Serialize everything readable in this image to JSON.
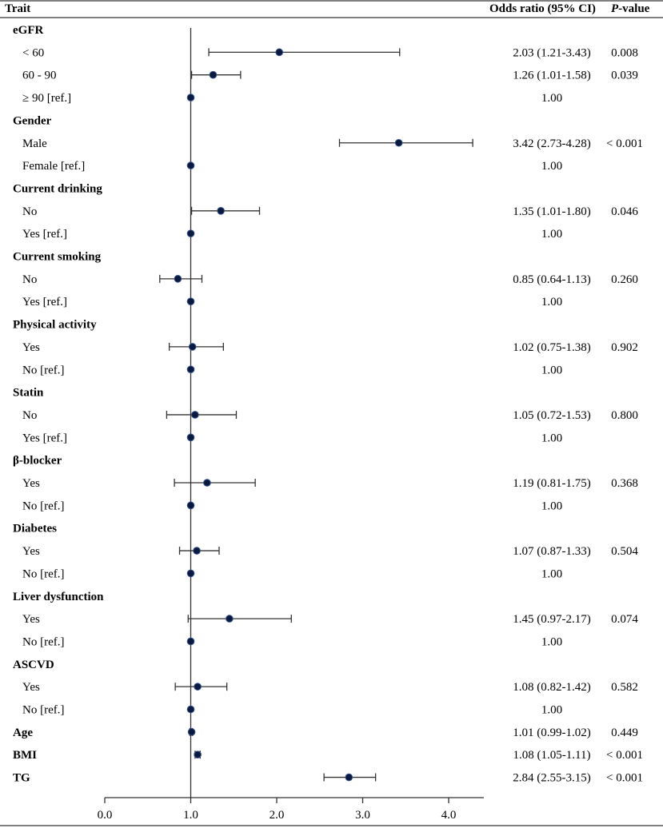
{
  "chart_data": {
    "type": "forest",
    "title": "",
    "xlabel": "",
    "xlim": [
      0,
      4.5
    ],
    "xticks": [
      0.0,
      1.0,
      2.0,
      3.0,
      4.0
    ],
    "xtick_labels": [
      "0.0",
      "1.0",
      "2.0",
      "3.0",
      "4.0"
    ],
    "reference_line": 1.0,
    "headers": {
      "trait": "Trait",
      "or": "Odds ratio (95% CI)",
      "p_italic": "P",
      "p_rest": "-value"
    },
    "rows": [
      {
        "kind": "group",
        "label": "eGFR"
      },
      {
        "kind": "item",
        "label": "< 60",
        "or": 2.03,
        "lo": 1.21,
        "hi": 3.43,
        "or_text": "2.03 (1.21-3.43)",
        "p": "0.008"
      },
      {
        "kind": "item",
        "label": "60 - 90",
        "or": 1.26,
        "lo": 1.01,
        "hi": 1.58,
        "or_text": "1.26 (1.01-1.58)",
        "p": "0.039"
      },
      {
        "kind": "item",
        "label": "≥ 90 [ref.]",
        "or": 1.0,
        "lo": null,
        "hi": null,
        "or_text": "1.00",
        "p": ""
      },
      {
        "kind": "group",
        "label": "Gender"
      },
      {
        "kind": "item",
        "label": "Male",
        "or": 3.42,
        "lo": 2.73,
        "hi": 4.28,
        "or_text": "3.42 (2.73-4.28)",
        "p": "< 0.001"
      },
      {
        "kind": "item",
        "label": "Female [ref.]",
        "or": 1.0,
        "lo": null,
        "hi": null,
        "or_text": "1.00",
        "p": ""
      },
      {
        "kind": "group",
        "label": "Current drinking"
      },
      {
        "kind": "item",
        "label": "No",
        "or": 1.35,
        "lo": 1.01,
        "hi": 1.8,
        "or_text": "1.35 (1.01-1.80)",
        "p": "0.046"
      },
      {
        "kind": "item",
        "label": "Yes [ref.]",
        "or": 1.0,
        "lo": null,
        "hi": null,
        "or_text": "1.00",
        "p": ""
      },
      {
        "kind": "group",
        "label": "Current smoking"
      },
      {
        "kind": "item",
        "label": "No",
        "or": 0.85,
        "lo": 0.64,
        "hi": 1.13,
        "or_text": "0.85 (0.64-1.13)",
        "p": "0.260"
      },
      {
        "kind": "item",
        "label": "Yes [ref.]",
        "or": 1.0,
        "lo": null,
        "hi": null,
        "or_text": "1.00",
        "p": ""
      },
      {
        "kind": "group",
        "label": "Physical activity"
      },
      {
        "kind": "item",
        "label": "Yes",
        "or": 1.02,
        "lo": 0.75,
        "hi": 1.38,
        "or_text": "1.02 (0.75-1.38)",
        "p": "0.902"
      },
      {
        "kind": "item",
        "label": "No [ref.]",
        "or": 1.0,
        "lo": null,
        "hi": null,
        "or_text": "1.00",
        "p": ""
      },
      {
        "kind": "group",
        "label": "Statin"
      },
      {
        "kind": "item",
        "label": "No",
        "or": 1.05,
        "lo": 0.72,
        "hi": 1.53,
        "or_text": "1.05 (0.72-1.53)",
        "p": "0.800"
      },
      {
        "kind": "item",
        "label": "Yes [ref.]",
        "or": 1.0,
        "lo": null,
        "hi": null,
        "or_text": "1.00",
        "p": ""
      },
      {
        "kind": "group",
        "label": "β-blocker"
      },
      {
        "kind": "item",
        "label": "Yes",
        "or": 1.19,
        "lo": 0.81,
        "hi": 1.75,
        "or_text": "1.19 (0.81-1.75)",
        "p": "0.368"
      },
      {
        "kind": "item",
        "label": "No [ref.]",
        "or": 1.0,
        "lo": null,
        "hi": null,
        "or_text": "1.00",
        "p": ""
      },
      {
        "kind": "group",
        "label": "Diabetes"
      },
      {
        "kind": "item",
        "label": "Yes",
        "or": 1.07,
        "lo": 0.87,
        "hi": 1.33,
        "or_text": "1.07 (0.87-1.33)",
        "p": "0.504"
      },
      {
        "kind": "item",
        "label": "No [ref.]",
        "or": 1.0,
        "lo": null,
        "hi": null,
        "or_text": "1.00",
        "p": ""
      },
      {
        "kind": "group",
        "label": "Liver dysfunction"
      },
      {
        "kind": "item",
        "label": "Yes",
        "or": 1.45,
        "lo": 0.97,
        "hi": 2.17,
        "or_text": "1.45 (0.97-2.17)",
        "p": "0.074"
      },
      {
        "kind": "item",
        "label": "No [ref.]",
        "or": 1.0,
        "lo": null,
        "hi": null,
        "or_text": "1.00",
        "p": ""
      },
      {
        "kind": "group",
        "label": "ASCVD"
      },
      {
        "kind": "item",
        "label": "Yes",
        "or": 1.08,
        "lo": 0.82,
        "hi": 1.42,
        "or_text": "1.08 (0.82-1.42)",
        "p": "0.582"
      },
      {
        "kind": "item",
        "label": "No [ref.]",
        "or": 1.0,
        "lo": null,
        "hi": null,
        "or_text": "1.00",
        "p": ""
      },
      {
        "kind": "main",
        "label": "Age",
        "or": 1.01,
        "lo": 0.99,
        "hi": 1.02,
        "or_text": "1.01 (0.99-1.02)",
        "p": "0.449"
      },
      {
        "kind": "main",
        "label": "BMI",
        "or": 1.08,
        "lo": 1.05,
        "hi": 1.11,
        "or_text": "1.08 (1.05-1.11)",
        "p": "< 0.001"
      },
      {
        "kind": "main",
        "label": "TG",
        "or": 2.84,
        "lo": 2.55,
        "hi": 3.15,
        "or_text": "2.84 (2.55-3.15)",
        "p": "< 0.001"
      }
    ]
  },
  "colors": {
    "marker_fill": "#0b1a3c",
    "marker_stroke": "#2f4f8f",
    "line": "#333333",
    "text": "#000000"
  }
}
